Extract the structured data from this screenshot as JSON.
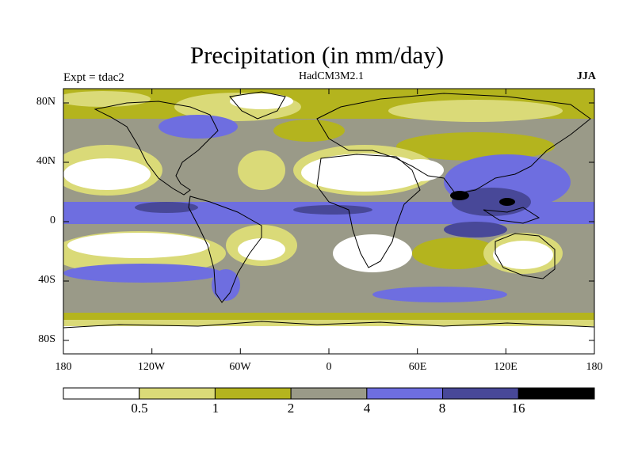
{
  "title": "Precipitation (in mm/day)",
  "left_label": "Expt = tdac2",
  "center_label": "HadCM3M2.1",
  "right_label": "JJA",
  "lat_ticks": [
    "80N",
    "40N",
    "0",
    "40S",
    "80S"
  ],
  "lon_ticks": [
    "180",
    "120W",
    "60W",
    "0",
    "60E",
    "120E",
    "180"
  ],
  "colorbar": {
    "colors": [
      "#ffffff",
      "#dada78",
      "#b4b41e",
      "#9a9a88",
      "#6e6ee0",
      "#484898",
      "#000000"
    ],
    "labels": [
      "0.5",
      "1",
      "2",
      "4",
      "8",
      "16"
    ]
  }
}
